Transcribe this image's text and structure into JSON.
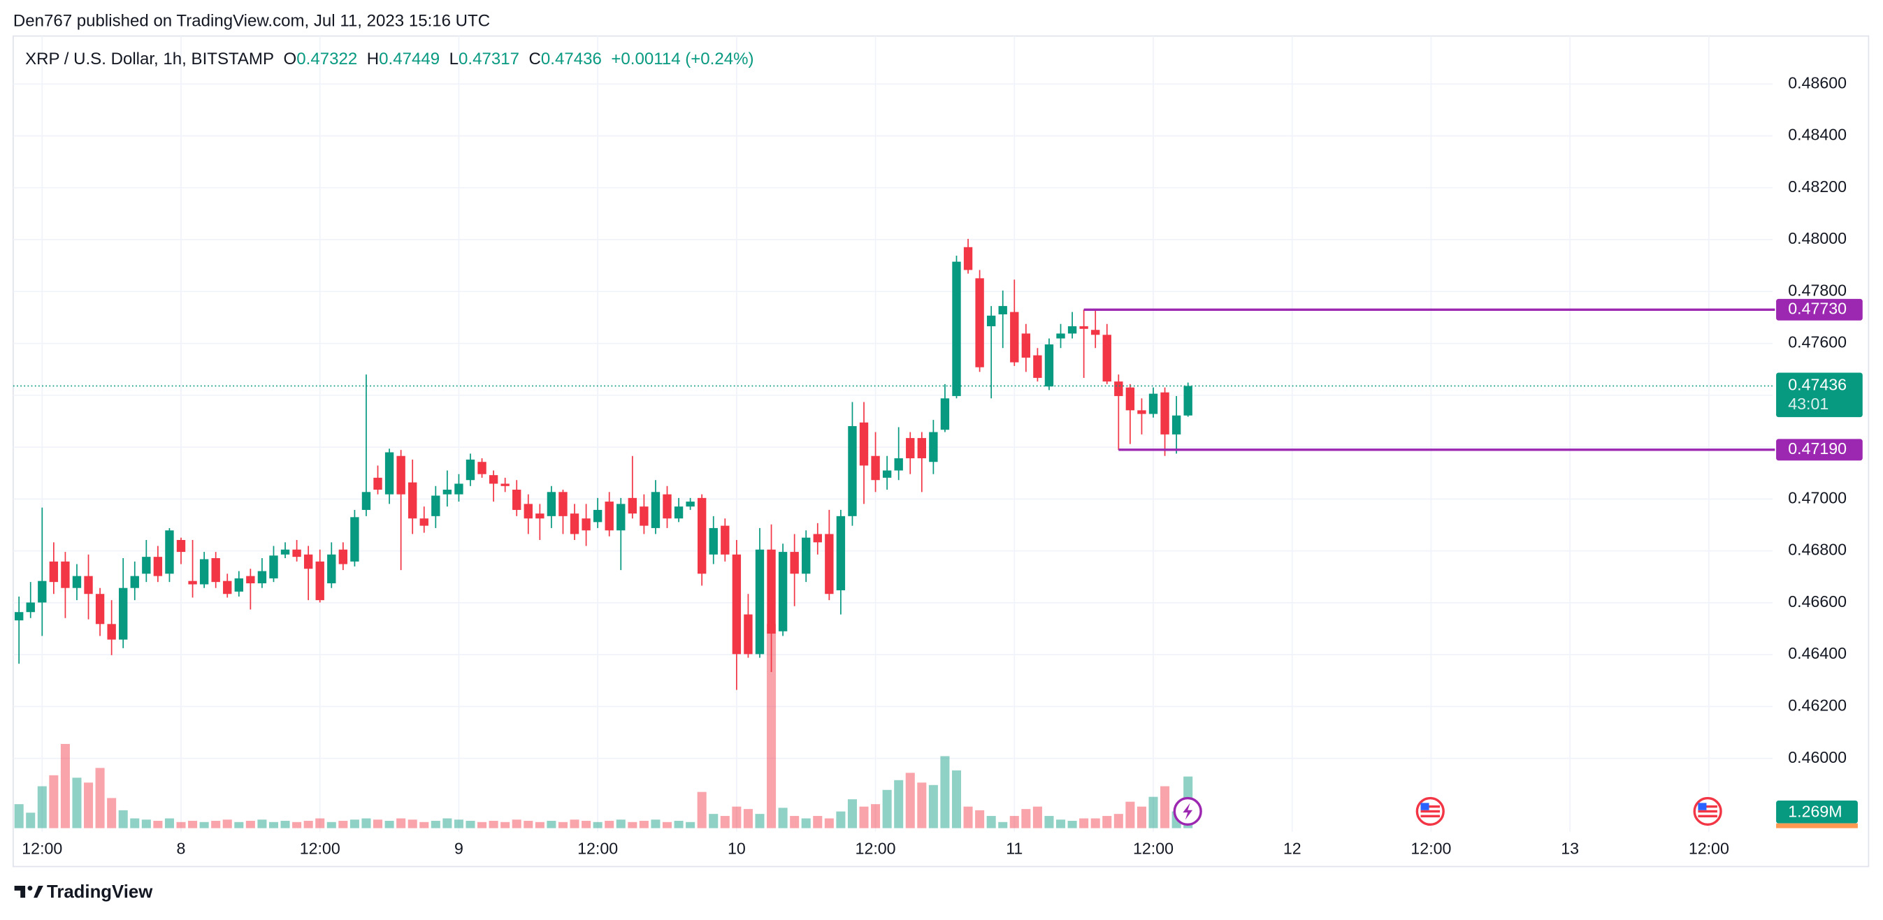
{
  "header": {
    "publisher": "Den767 published on TradingView.com, Jul 11, 2023 15:16 UTC"
  },
  "chart_data": {
    "type": "candlestick",
    "title": "XRP / U.S. Dollar, 1h, BITSTAMP",
    "legend_labels": {
      "open": "O",
      "high": "H",
      "low": "L",
      "close": "C"
    },
    "change": "+0.00114 (+0.24%)",
    "categories": [
      null,
      null,
      "12:00",
      null,
      null,
      null,
      null,
      null,
      null,
      null,
      null,
      null,
      null,
      null,
      "8",
      null,
      null,
      null,
      null,
      null,
      null,
      null,
      null,
      null,
      null,
      null,
      "12:00",
      null,
      null,
      null,
      null,
      null,
      null,
      null,
      null,
      null,
      null,
      null,
      "9",
      null,
      null,
      null,
      null,
      null,
      null,
      null,
      null,
      null,
      null,
      null,
      "12:00",
      null,
      null,
      null,
      null,
      null,
      null,
      null,
      null,
      null,
      null,
      null,
      "10",
      null,
      null,
      null,
      null,
      null,
      null,
      null,
      null,
      null,
      null,
      null,
      "12:00",
      null,
      null,
      null,
      null,
      null,
      null,
      null,
      null,
      null,
      null,
      null,
      "11",
      null,
      null,
      null,
      null,
      null,
      null,
      null,
      null,
      null,
      null,
      null,
      "12:00",
      null,
      null,
      null,
      null,
      null,
      null,
      null,
      null,
      null,
      null,
      null,
      "12",
      null,
      null,
      null,
      null,
      null,
      null,
      null,
      null,
      null,
      null,
      null,
      "12:00",
      null,
      null,
      null,
      null,
      null,
      null,
      null,
      null,
      null,
      null,
      null,
      "13",
      null,
      null,
      null,
      null,
      null,
      null,
      null,
      null,
      null,
      null,
      null,
      "12:00",
      null,
      null,
      null,
      null,
      null
    ],
    "open": [
      0.46532,
      0.46564,
      0.46601,
      0.46759,
      0.46759,
      0.46657,
      0.46703,
      0.46634,
      0.46518,
      0.46458,
      0.46657,
      0.46712,
      0.46777,
      0.46712,
      0.46842,
      0.46684,
      0.46671,
      0.46772,
      0.46684,
      0.46643,
      0.46703,
      0.46675,
      0.46694,
      0.46786,
      0.46805,
      0.46786,
      0.46759,
      0.46675,
      0.46805,
      0.46759,
      0.46958,
      0.47082,
      0.47018,
      0.47166,
      0.47064,
      0.46925,
      0.46934,
      0.47018,
      0.47018,
      0.47073,
      0.47143,
      0.47092,
      0.47059,
      0.47036,
      0.46981,
      0.46944,
      0.46934,
      0.47027,
      0.46944,
      0.46925,
      0.46911,
      0.4699,
      0.46879,
      0.47004,
      0.46971,
      0.46888,
      0.47018,
      0.46925,
      0.46971,
      0.47004,
      0.46786,
      0.46897,
      0.46786,
      0.46555,
      0.46402,
      0.46805,
      0.4649,
      0.46796,
      0.46712,
      0.46865,
      0.46865,
      0.46648,
      0.46934,
      0.47295,
      0.47166,
      0.47082,
      0.4711,
      0.47235,
      0.47235,
      0.47143,
      0.47267,
      0.47397,
      0.47971,
      0.47851,
      0.47666,
      0.47712,
      0.47721,
      0.47638,
      0.47554,
      0.47434,
      0.47619,
      0.47638,
      0.47666,
      0.47652,
      0.47633,
      0.47453,
      0.4743,
      0.47342,
      0.47328,
      0.47411,
      0.47249,
      0.47322,
      null,
      null,
      null,
      null,
      null,
      null,
      null,
      null,
      null,
      null,
      null,
      null,
      null,
      null,
      null,
      null,
      null,
      null,
      null,
      null,
      null,
      null,
      null,
      null,
      null,
      null,
      null,
      null,
      null,
      null,
      null,
      null,
      null,
      null,
      null,
      null,
      null,
      null,
      null,
      null,
      null,
      null,
      null,
      null,
      null,
      null,
      null,
      null,
      null,
      null
    ],
    "high": [
      0.46624,
      0.4668,
      0.46967,
      0.46833,
      0.46796,
      0.46749,
      0.46786,
      0.46657,
      0.4661,
      0.46772,
      0.46759,
      0.46842,
      0.46819,
      0.46888,
      0.46851,
      0.46842,
      0.46796,
      0.46796,
      0.46712,
      0.46722,
      0.46731,
      0.46772,
      0.46819,
      0.46833,
      0.46842,
      0.46819,
      0.46805,
      0.46833,
      0.46833,
      0.46958,
      0.4748,
      0.47129,
      0.47194,
      0.47189,
      0.47152,
      0.46971,
      0.4705,
      0.4711,
      0.47096,
      0.47175,
      0.47157,
      0.4711,
      0.47082,
      0.47073,
      0.47018,
      0.46981,
      0.4705,
      0.47036,
      0.46981,
      0.46981,
      0.47004,
      0.47027,
      0.47004,
      0.47166,
      0.47018,
      0.47073,
      0.4705,
      0.47004,
      0.47004,
      0.47018,
      0.46934,
      0.46925,
      0.46842,
      0.46634,
      0.46888,
      0.46902,
      0.46828,
      0.46865,
      0.46879,
      0.46907,
      0.46958,
      0.46958,
      0.47374,
      0.47374,
      0.47258,
      0.47166,
      0.47277,
      0.47258,
      0.47258,
      0.47305,
      0.47443,
      0.47938,
      0.48003,
      0.47883,
      0.47744,
      0.47804,
      0.47846,
      0.47675,
      0.47582,
      0.47619,
      0.47675,
      0.47721,
      0.4773,
      0.4773,
      0.47675,
      0.4748,
      0.47443,
      0.47388,
      0.4743,
      0.4743,
      0.47397,
      0.47449,
      null,
      null,
      null,
      null,
      null,
      null,
      null,
      null,
      null,
      null,
      null,
      null,
      null,
      null,
      null,
      null,
      null,
      null,
      null,
      null,
      null,
      null,
      null,
      null,
      null,
      null,
      null,
      null,
      null,
      null,
      null,
      null,
      null,
      null,
      null,
      null,
      null,
      null,
      null,
      null,
      null,
      null,
      null,
      null,
      null,
      null,
      null,
      null,
      null,
      null
    ],
    "low": [
      0.46365,
      0.46541,
      0.46472,
      0.46634,
      0.46541,
      0.4661,
      0.46536,
      0.46472,
      0.46398,
      0.46425,
      0.4661,
      0.4668,
      0.4668,
      0.4668,
      0.46749,
      0.4662,
      0.46657,
      0.46657,
      0.4662,
      0.46624,
      0.46574,
      0.46657,
      0.4668,
      0.46772,
      0.46759,
      0.4661,
      0.46601,
      0.46657,
      0.46726,
      0.4674,
      0.46934,
      0.47018,
      0.46981,
      0.46726,
      0.46865,
      0.4687,
      0.46888,
      0.46971,
      0.4699,
      0.4705,
      0.47082,
      0.4699,
      0.47027,
      0.46934,
      0.46865,
      0.46842,
      0.46888,
      0.46865,
      0.46842,
      0.46819,
      0.46888,
      0.46856,
      0.46726,
      0.46925,
      0.46865,
      0.46865,
      0.46888,
      0.46911,
      0.46958,
      0.46666,
      0.46749,
      0.46759,
      0.46264,
      0.46388,
      0.46388,
      0.46333,
      0.46472,
      0.46587,
      0.4668,
      0.46786,
      0.4661,
      0.46555,
      0.46897,
      0.46981,
      0.47027,
      0.47036,
      0.47073,
      0.47096,
      0.47027,
      0.47096,
      0.47258,
      0.47388,
      0.47869,
      0.4749,
      0.47388,
      0.47582,
      0.47513,
      0.4749,
      0.47453,
      0.4742,
      0.47582,
      0.47619,
      0.47467,
      0.47582,
      0.47443,
      0.47189,
      0.47212,
      0.47249,
      0.47314,
      0.47166,
      0.47175,
      0.47317,
      null,
      null,
      null,
      null,
      null,
      null,
      null,
      null,
      null,
      null,
      null,
      null,
      null,
      null,
      null,
      null,
      null,
      null,
      null,
      null,
      null,
      null,
      null,
      null,
      null,
      null,
      null,
      null,
      null,
      null,
      null,
      null,
      null,
      null,
      null,
      null,
      null,
      null,
      null,
      null,
      null,
      null,
      null,
      null,
      null,
      null,
      null,
      null,
      null,
      null
    ],
    "close": [
      0.46564,
      0.46601,
      0.46684,
      0.4668,
      0.46657,
      0.46703,
      0.46634,
      0.46518,
      0.46458,
      0.46657,
      0.46703,
      0.46777,
      0.46703,
      0.46879,
      0.46796,
      0.46671,
      0.46768,
      0.4668,
      0.46634,
      0.46694,
      0.46675,
      0.46722,
      0.46782,
      0.46805,
      0.46777,
      0.46731,
      0.4661,
      0.46786,
      0.46749,
      0.4693,
      0.47027,
      0.47036,
      0.4718,
      0.47018,
      0.46925,
      0.46897,
      0.47013,
      0.47036,
      0.47059,
      0.47152,
      0.47096,
      0.47059,
      0.4705,
      0.46958,
      0.46925,
      0.46925,
      0.47027,
      0.46934,
      0.46865,
      0.46879,
      0.46958,
      0.46879,
      0.46981,
      0.46944,
      0.46897,
      0.47027,
      0.46925,
      0.46971,
      0.4699,
      0.46712,
      0.46888,
      0.46786,
      0.46402,
      0.46402,
      0.46805,
      0.46481,
      0.46796,
      0.46712,
      0.46851,
      0.46833,
      0.46634,
      0.46934,
      0.47281,
      0.47129,
      0.47073,
      0.4711,
      0.47157,
      0.47157,
      0.47157,
      0.47258,
      0.47388,
      0.47915,
      0.47883,
      0.47508,
      0.47707,
      0.47744,
      0.47527,
      0.47545,
      0.47467,
      0.47596,
      0.47638,
      0.47666,
      0.47656,
      0.47633,
      0.47453,
      0.47397,
      0.47342,
      0.47328,
      0.47406,
      0.47249,
      0.47322,
      0.47436,
      null,
      null,
      null,
      null,
      null,
      null,
      null,
      null,
      null,
      null,
      null,
      null,
      null,
      null,
      null,
      null,
      null,
      null,
      null,
      null,
      null,
      null,
      null,
      null,
      null,
      null,
      null,
      null,
      null,
      null,
      null,
      null,
      null,
      null,
      null,
      null,
      null,
      null,
      null,
      null,
      null,
      null,
      null,
      null,
      null,
      null,
      null,
      null,
      null,
      null
    ],
    "volume": [
      590000,
      380000,
      1030000,
      1300000,
      2070000,
      1240000,
      1120000,
      1480000,
      740000,
      440000,
      240000,
      210000,
      180000,
      240000,
      150000,
      180000,
      150000,
      180000,
      210000,
      150000,
      180000,
      210000,
      150000,
      180000,
      150000,
      180000,
      240000,
      150000,
      180000,
      210000,
      240000,
      210000,
      180000,
      240000,
      210000,
      150000,
      180000,
      240000,
      210000,
      180000,
      150000,
      180000,
      150000,
      210000,
      180000,
      150000,
      180000,
      150000,
      210000,
      180000,
      150000,
      180000,
      210000,
      150000,
      180000,
      210000,
      150000,
      180000,
      150000,
      890000,
      350000,
      300000,
      530000,
      470000,
      350000,
      5020000,
      500000,
      300000,
      240000,
      300000,
      240000,
      410000,
      710000,
      530000,
      590000,
      940000,
      1180000,
      1360000,
      1120000,
      1060000,
      1770000,
      1420000,
      530000,
      440000,
      300000,
      150000,
      300000,
      470000,
      530000,
      300000,
      210000,
      180000,
      240000,
      240000,
      300000,
      350000,
      650000,
      530000,
      770000,
      1030000,
      410000,
      1269000,
      null,
      null,
      null,
      null,
      null,
      null,
      null,
      null,
      null,
      null,
      null,
      null,
      null,
      null,
      null,
      null,
      null,
      null,
      null,
      null,
      null,
      null,
      null,
      null,
      null,
      null,
      null,
      null,
      null,
      null,
      null,
      null,
      null,
      null,
      null,
      null,
      null,
      null,
      null,
      null,
      null,
      null,
      null,
      null,
      null,
      null,
      null,
      null,
      null,
      null
    ],
    "volume_label": "1.269M",
    "countdown": "43:01",
    "up_color": "#089981",
    "down_color": "#f23645",
    "ylim": [
      0.45731,
      0.48785
    ],
    "yticks": [
      {
        "value": 0.486,
        "label": "0.48600"
      },
      {
        "value": 0.484,
        "label": "0.48400"
      },
      {
        "value": 0.482,
        "label": "0.48200"
      },
      {
        "value": 0.48,
        "label": "0.48000"
      },
      {
        "value": 0.478,
        "label": "0.47800"
      },
      {
        "value": 0.476,
        "label": "0.47600"
      },
      {
        "value": 0.474,
        "label": "0.47400"
      },
      {
        "value": 0.472,
        "label": "0.47200"
      },
      {
        "value": 0.47,
        "label": "0.47000"
      },
      {
        "value": 0.468,
        "label": "0.46800"
      },
      {
        "value": 0.466,
        "label": "0.46600"
      },
      {
        "value": 0.464,
        "label": "0.46400"
      },
      {
        "value": 0.462,
        "label": "0.46200"
      },
      {
        "value": 0.46,
        "label": "0.46000"
      }
    ],
    "y2lim": [
      0,
      19470000
    ],
    "levels": [
      {
        "value": 0.4773,
        "label": "0.47730",
        "start": 92,
        "color": "#9c27b0"
      },
      {
        "value": 0.4719,
        "label": "0.47190",
        "start": 95,
        "color": "#9c27b0"
      }
    ],
    "grid": true
  },
  "footer": {
    "brand": "TradingView"
  }
}
